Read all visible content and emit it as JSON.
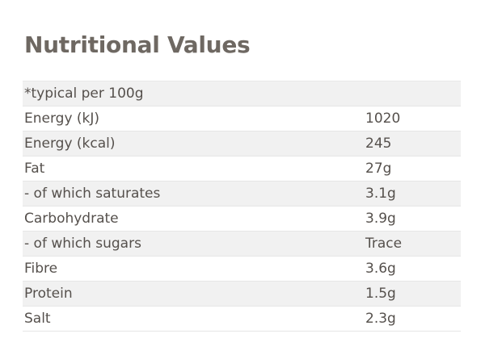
{
  "title": "Nutritional Values",
  "table": {
    "header": "*typical per 100g",
    "rows": [
      {
        "label": "Energy (kJ)",
        "value": "1020"
      },
      {
        "label": "Energy (kcal)",
        "value": "245"
      },
      {
        "label": "Fat",
        "value": "27g"
      },
      {
        "label": "- of which saturates",
        "value": "3.1g"
      },
      {
        "label": "Carbohydrate",
        "value": "3.9g"
      },
      {
        "label": "- of which sugars",
        "value": "Trace"
      },
      {
        "label": "Fibre",
        "value": "3.6g"
      },
      {
        "label": "Protein",
        "value": "1.5g"
      },
      {
        "label": "Salt",
        "value": "2.3g"
      }
    ]
  }
}
